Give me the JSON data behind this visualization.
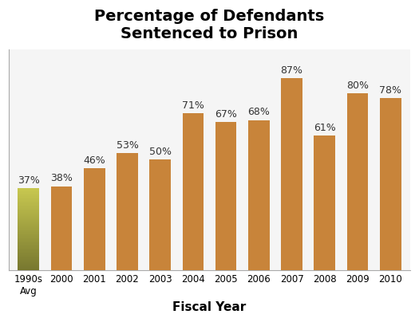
{
  "categories": [
    "1990s\nAvg",
    "2000",
    "2001",
    "2002",
    "2003",
    "2004",
    "2005",
    "2006",
    "2007",
    "2008",
    "2009",
    "2010"
  ],
  "values": [
    37,
    38,
    46,
    53,
    50,
    71,
    67,
    68,
    87,
    61,
    80,
    78
  ],
  "bar_colors": [
    "#b5b04a",
    "#c8843a",
    "#c8843a",
    "#c8843a",
    "#c8843a",
    "#c8843a",
    "#c8843a",
    "#c8843a",
    "#c8843a",
    "#c8843a",
    "#c8843a",
    "#c8843a"
  ],
  "first_bar_gradient": true,
  "title": "Percentage of Defendants\nSentenced to Prison",
  "xlabel": "Fiscal Year",
  "ylabel": "",
  "ylim": [
    0,
    100
  ],
  "title_fontsize": 14,
  "label_fontsize": 9,
  "xlabel_fontsize": 11,
  "background_color": "#ffffff",
  "plot_bg_color": "#f5f5f5",
  "grid_color": "#ffffff",
  "bar_color_main": "#c8843a",
  "bar_color_first_top": "#c8c87a",
  "bar_color_first_bottom": "#787840"
}
